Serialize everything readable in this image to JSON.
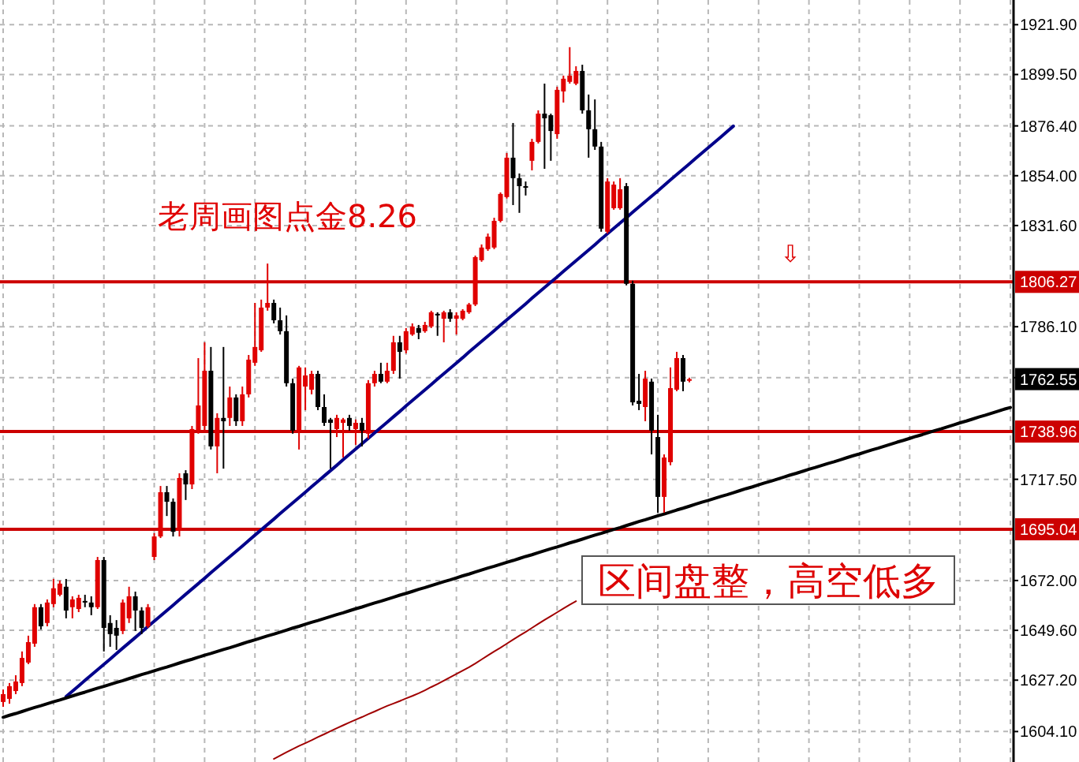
{
  "chart_data": {
    "type": "candlestick",
    "title": "老周画图点金8.26",
    "categories": [
      null,
      null,
      null,
      null,
      null,
      null,
      null,
      null,
      null,
      null,
      null,
      null,
      null,
      null,
      null,
      null,
      null,
      null,
      null,
      null,
      null,
      null,
      null,
      null,
      null,
      null,
      null,
      null,
      null,
      null,
      null,
      null,
      null,
      null,
      null,
      null,
      null,
      null,
      null,
      null,
      null,
      null,
      null,
      null,
      null,
      null,
      null,
      null,
      null,
      null,
      null,
      null,
      null,
      null,
      null,
      null,
      null,
      null,
      null,
      null,
      null,
      null,
      null,
      null,
      null,
      null,
      null,
      null,
      null,
      null,
      null,
      null,
      null,
      null,
      null,
      null,
      null,
      null,
      null,
      null,
      null,
      null,
      null,
      null,
      null,
      null,
      null,
      null,
      null,
      null,
      null,
      null,
      null,
      null,
      null,
      null,
      null,
      null,
      null,
      null,
      null,
      null,
      null,
      null,
      null,
      null,
      null,
      null,
      null,
      null,
      null,
      null,
      null,
      null,
      null,
      null,
      null,
      null,
      null,
      null,
      null,
      null,
      null,
      null,
      null,
      null,
      null,
      null,
      null,
      null,
      null,
      null,
      null,
      null,
      null,
      null,
      null,
      null,
      null,
      null,
      null,
      null,
      null,
      null,
      null,
      null,
      null,
      null,
      null,
      null,
      null,
      null,
      null,
      null,
      null,
      null,
      null,
      null,
      null,
      null,
      null
    ],
    "ohlc": [
      [
        1617.4,
        1623.0,
        1615.2,
        1620.9
      ],
      [
        1618.8,
        1625.9,
        1616.6,
        1624.5
      ],
      [
        1622.3,
        1629.4,
        1620.9,
        1626.6
      ],
      [
        1625.9,
        1640.1,
        1624.5,
        1637.2
      ],
      [
        1635.1,
        1647.2,
        1634.4,
        1644.3
      ],
      [
        1643.6,
        1661.4,
        1642.2,
        1660.0
      ],
      [
        1660.0,
        1661.4,
        1650.0,
        1651.4
      ],
      [
        1652.9,
        1663.5,
        1651.4,
        1662.1
      ],
      [
        1661.4,
        1672.7,
        1660.0,
        1668.5
      ],
      [
        1665.6,
        1672.0,
        1664.9,
        1670.6
      ],
      [
        1669.2,
        1672.7,
        1655.0,
        1658.5
      ],
      [
        1660.0,
        1664.9,
        1655.0,
        1663.5
      ],
      [
        1659.2,
        1665.6,
        1657.8,
        1664.2
      ],
      [
        1662.8,
        1665.6,
        1660.0,
        1662.1
      ],
      [
        1662.1,
        1664.9,
        1656.4,
        1660.0
      ],
      [
        1660.0,
        1682.6,
        1659.2,
        1681.2
      ],
      [
        1681.2,
        1682.6,
        1640.1,
        1650.7
      ],
      [
        1652.9,
        1656.4,
        1642.2,
        1647.9
      ],
      [
        1650.7,
        1654.2,
        1640.8,
        1647.2
      ],
      [
        1649.3,
        1663.5,
        1647.9,
        1662.1
      ],
      [
        1655.0,
        1669.2,
        1652.9,
        1664.9
      ],
      [
        1664.9,
        1667.0,
        1649.3,
        1658.5
      ],
      [
        1658.5,
        1660.0,
        1647.9,
        1650.7
      ],
      [
        1651.4,
        1661.4,
        1650.7,
        1660.0
      ],
      [
        1682.6,
        1693.3,
        1681.2,
        1691.8
      ],
      [
        1691.8,
        1714.5,
        1691.1,
        1711.7
      ],
      [
        1711.7,
        1714.5,
        1701.0,
        1707.4
      ],
      [
        1707.4,
        1708.9,
        1691.8,
        1693.9
      ],
      [
        1694.6,
        1720.2,
        1691.8,
        1718.1
      ],
      [
        1720.2,
        1721.6,
        1708.2,
        1715.2
      ],
      [
        1715.2,
        1741.5,
        1713.1,
        1740.1
      ],
      [
        1739.4,
        1772.0,
        1738.0,
        1750.7
      ],
      [
        1741.5,
        1779.1,
        1739.4,
        1766.3
      ],
      [
        1766.3,
        1777.0,
        1730.9,
        1732.3
      ],
      [
        1732.3,
        1747.2,
        1720.2,
        1745.1
      ],
      [
        1745.1,
        1777.0,
        1722.3,
        1743.6
      ],
      [
        1745.1,
        1759.2,
        1741.5,
        1754.3
      ],
      [
        1754.3,
        1755.7,
        1741.5,
        1743.6
      ],
      [
        1743.6,
        1759.2,
        1741.5,
        1755.7
      ],
      [
        1755.7,
        1773.4,
        1754.3,
        1771.3
      ],
      [
        1769.9,
        1796.8,
        1768.5,
        1777.0
      ],
      [
        1775.5,
        1798.3,
        1774.8,
        1794.7
      ],
      [
        1794.7,
        1814.5,
        1793.3,
        1796.8
      ],
      [
        1796.8,
        1798.3,
        1787.6,
        1789.0
      ],
      [
        1789.0,
        1794.7,
        1782.6,
        1784.1
      ],
      [
        1784.1,
        1791.2,
        1759.2,
        1760.7
      ],
      [
        1760.7,
        1762.8,
        1738.0,
        1739.4
      ],
      [
        1739.4,
        1768.5,
        1730.9,
        1767.8
      ],
      [
        1759.2,
        1767.8,
        1748.6,
        1764.2
      ],
      [
        1757.8,
        1766.3,
        1755.7,
        1764.9
      ],
      [
        1764.9,
        1766.3,
        1748.6,
        1750.0
      ],
      [
        1750.0,
        1755.7,
        1741.5,
        1742.9
      ],
      [
        1744.4,
        1745.1,
        1722.3,
        1742.9
      ],
      [
        1740.1,
        1746.5,
        1736.5,
        1745.1
      ],
      [
        1742.9,
        1745.1,
        1727.3,
        1744.4
      ],
      [
        1745.1,
        1746.5,
        1739.4,
        1741.5
      ],
      [
        1740.1,
        1744.4,
        1733.0,
        1742.9
      ],
      [
        1742.9,
        1745.1,
        1732.3,
        1739.4
      ],
      [
        1738.0,
        1762.1,
        1735.8,
        1760.7
      ],
      [
        1760.7,
        1766.3,
        1759.2,
        1764.9
      ],
      [
        1764.9,
        1769.9,
        1760.7,
        1761.4
      ],
      [
        1761.4,
        1769.9,
        1760.7,
        1766.3
      ],
      [
        1766.3,
        1782.0,
        1764.9,
        1779.1
      ],
      [
        1779.1,
        1782.0,
        1762.8,
        1774.8
      ],
      [
        1775.5,
        1785.5,
        1774.1,
        1784.1
      ],
      [
        1782.6,
        1787.6,
        1782.0,
        1786.2
      ],
      [
        1785.5,
        1786.9,
        1780.5,
        1783.4
      ],
      [
        1784.1,
        1788.3,
        1783.4,
        1786.9
      ],
      [
        1786.2,
        1793.3,
        1785.5,
        1792.6
      ],
      [
        1791.9,
        1792.6,
        1782.0,
        1791.2
      ],
      [
        1789.7,
        1793.3,
        1779.1,
        1792.6
      ],
      [
        1792.6,
        1794.0,
        1788.3,
        1789.7
      ],
      [
        1789.7,
        1792.6,
        1782.6,
        1791.2
      ],
      [
        1789.7,
        1794.0,
        1789.0,
        1793.3
      ],
      [
        1792.6,
        1796.8,
        1791.9,
        1796.1
      ],
      [
        1796.1,
        1818.1,
        1795.4,
        1817.4
      ],
      [
        1816.0,
        1823.1,
        1815.3,
        1821.7
      ],
      [
        1821.0,
        1828.0,
        1820.2,
        1826.6
      ],
      [
        1821.7,
        1835.1,
        1821.0,
        1833.7
      ],
      [
        1833.7,
        1846.5,
        1833.0,
        1845.8
      ],
      [
        1844.4,
        1864.2,
        1843.7,
        1862.1
      ],
      [
        1862.1,
        1877.7,
        1840.8,
        1852.9
      ],
      [
        1852.9,
        1855.0,
        1837.3,
        1849.3
      ],
      [
        1849.3,
        1851.4,
        1845.1,
        1848.6
      ],
      [
        1860.7,
        1870.6,
        1856.4,
        1869.2
      ],
      [
        1869.2,
        1883.4,
        1868.5,
        1881.9
      ],
      [
        1881.9,
        1895.4,
        1857.1,
        1879.8
      ],
      [
        1881.2,
        1881.9,
        1860.7,
        1874.1
      ],
      [
        1872.7,
        1894.0,
        1870.6,
        1892.6
      ],
      [
        1891.9,
        1899.0,
        1886.9,
        1897.6
      ],
      [
        1896.2,
        1911.8,
        1895.4,
        1899.0
      ],
      [
        1895.4,
        1903.2,
        1894.7,
        1901.1
      ],
      [
        1901.1,
        1903.9,
        1881.9,
        1883.4
      ],
      [
        1883.4,
        1890.5,
        1862.1,
        1874.9
      ],
      [
        1874.9,
        1888.3,
        1865.6,
        1867.1
      ],
      [
        1867.1,
        1869.2,
        1828.8,
        1830.2
      ],
      [
        1828.8,
        1852.9,
        1828.0,
        1851.4
      ],
      [
        1839.4,
        1851.4,
        1838.7,
        1850.0
      ],
      [
        1839.4,
        1852.9,
        1838.7,
        1847.9
      ],
      [
        1849.3,
        1850.7,
        1804.7,
        1805.4
      ],
      [
        1805.4,
        1806.8,
        1750.7,
        1752.1
      ],
      [
        1752.8,
        1764.9,
        1748.6,
        1751.4
      ],
      [
        1750.0,
        1766.3,
        1743.6,
        1762.8
      ],
      [
        1761.4,
        1762.8,
        1728.7,
        1739.4
      ],
      [
        1736.5,
        1746.5,
        1702.5,
        1709.6
      ],
      [
        1709.6,
        1728.7,
        1702.5,
        1727.3
      ],
      [
        1725.2,
        1767.8,
        1723.8,
        1758.5
      ],
      [
        1757.8,
        1774.8,
        1757.1,
        1772.0
      ],
      [
        1772.0,
        1773.4,
        1757.1,
        1761.4
      ],
      [
        1761.8,
        1763.2,
        1761.1,
        1762.55
      ],
      null,
      null,
      null,
      null,
      null,
      null,
      null,
      null,
      null,
      null,
      null,
      null,
      null,
      null,
      null,
      null,
      null,
      null,
      null,
      null,
      null,
      null,
      null,
      null,
      null,
      null,
      null,
      null,
      null,
      null,
      null,
      null,
      null,
      null,
      null,
      null,
      null,
      null,
      null,
      null,
      null,
      null,
      null,
      null,
      null,
      null,
      null,
      null,
      null,
      null,
      null
    ],
    "colors": [
      "#e00000",
      "#e00000",
      "#e00000",
      "#e00000",
      "#e00000",
      "#e00000",
      "#000000",
      "#e00000",
      "#e00000",
      "#e00000",
      "#000000",
      "#e00000",
      "#e00000",
      "#000000",
      "#000000",
      "#e00000",
      "#000000",
      "#000000",
      "#000000",
      "#e00000",
      "#e00000",
      "#000000",
      "#000000",
      "#e00000",
      "#e00000",
      "#e00000",
      "#000000",
      "#000000",
      "#e00000",
      "#000000",
      "#e00000",
      "#e00000",
      "#e00000",
      "#000000",
      "#e00000",
      "#000000",
      "#e00000",
      "#000000",
      "#e00000",
      "#e00000",
      "#e00000",
      "#e00000",
      "#e00000",
      "#000000",
      "#000000",
      "#000000",
      "#000000",
      "#e00000",
      "#e00000",
      "#e00000",
      "#000000",
      "#000000",
      "#000000",
      "#e00000",
      "#e00000",
      "#000000",
      "#e00000",
      "#000000",
      "#e00000",
      "#e00000",
      "#000000",
      "#e00000",
      "#e00000",
      "#000000",
      "#e00000",
      "#e00000",
      "#000000",
      "#e00000",
      "#e00000",
      "#000000",
      "#e00000",
      "#000000",
      "#e00000",
      "#e00000",
      "#e00000",
      "#e00000",
      "#e00000",
      "#e00000",
      "#e00000",
      "#e00000",
      "#e00000",
      "#000000",
      "#000000",
      "#000000",
      "#e00000",
      "#e00000",
      "#000000",
      "#000000",
      "#e00000",
      "#e00000",
      "#e00000",
      "#e00000",
      "#000000",
      "#000000",
      "#000000",
      "#000000",
      "#e00000",
      "#e00000",
      "#e00000",
      "#000000",
      "#000000",
      "#000000",
      "#e00000",
      "#000000",
      "#000000",
      "#e00000",
      "#e00000",
      "#e00000",
      "#000000",
      "#e00000",
      null,
      null,
      null,
      null,
      null,
      null,
      null,
      null,
      null,
      null,
      null,
      null,
      null,
      null,
      null,
      null,
      null,
      null,
      null,
      null,
      null,
      null,
      null,
      null,
      null,
      null,
      null,
      null,
      null,
      null,
      null,
      null,
      null,
      null,
      null,
      null,
      null,
      null,
      null,
      null,
      null,
      null,
      null,
      null,
      null,
      null,
      null,
      null,
      null,
      null,
      null
    ],
    "series": [
      {
        "type": "line",
        "color": "#00008b",
        "values": [
          null,
          null,
          null,
          null,
          null,
          null,
          null,
          null,
          null,
          null,
          1619.8,
          1622.2,
          1624.6,
          1627.1,
          1629.5,
          1631.9,
          1634.3,
          1636.7,
          1639.2,
          1641.6,
          1644.0,
          1646.4,
          1648.8,
          1651.3,
          1653.7,
          1656.1,
          1658.5,
          1660.9,
          1663.4,
          1665.8,
          1668.2,
          1670.6,
          1673.0,
          1675.5,
          1677.9,
          1680.3,
          1682.7,
          1685.1,
          1687.5,
          1690.0,
          1692.4,
          1694.8,
          1697.2,
          1699.6,
          1702.1,
          1704.5,
          1706.9,
          1709.3,
          1711.7,
          1714.2,
          1716.6,
          1719.0,
          1721.4,
          1723.8,
          1726.3,
          1728.7,
          1731.1,
          1733.5,
          1735.9,
          1738.4,
          1740.8,
          1743.2,
          1745.6,
          1748.0,
          1750.5,
          1752.9,
          1755.3,
          1757.7,
          1760.1,
          1762.6,
          1765.0,
          1767.4,
          1769.8,
          1772.2,
          1774.7,
          1777.1,
          1779.5,
          1781.9,
          1784.3,
          1786.8,
          1789.2,
          1791.6,
          1794.0,
          1796.4,
          1798.9,
          1801.3,
          1803.7,
          1806.1,
          1808.5,
          1811.0,
          1813.4,
          1815.8,
          1818.2,
          1820.6,
          1823.0,
          1825.5,
          1827.9,
          1830.3,
          1832.7,
          1835.1,
          1837.6,
          1840.0,
          1842.4,
          1844.8,
          1847.2,
          1849.7,
          1852.1,
          1854.5,
          1856.9,
          1859.3,
          1861.8,
          1864.2,
          1866.6,
          1869.0,
          1871.4,
          1873.9,
          1876.3,
          null,
          null,
          null,
          null,
          null,
          null,
          null,
          null,
          null,
          null,
          null,
          null,
          null,
          null,
          null,
          null,
          null,
          null,
          null,
          null,
          null,
          null,
          null,
          null,
          null,
          null,
          null,
          null,
          null,
          null,
          null,
          null,
          null,
          null,
          null,
          null,
          null,
          null,
          null,
          null,
          null,
          null,
          null,
          null
        ]
      },
      {
        "type": "line",
        "color": "#000000",
        "values": [
          1610.5,
          1611.4,
          1612.2,
          1613.1,
          1614.0,
          1614.9,
          1615.7,
          1616.6,
          1617.5,
          1618.3,
          1619.2,
          1620.1,
          1621.0,
          1621.8,
          1622.7,
          1623.6,
          1624.4,
          1625.3,
          1626.2,
          1627.0,
          1627.9,
          1628.8,
          1629.7,
          1630.5,
          1631.4,
          1632.3,
          1633.1,
          1634.0,
          1634.9,
          1635.8,
          1636.6,
          1637.5,
          1638.4,
          1639.2,
          1640.1,
          1641.0,
          1641.8,
          1642.7,
          1643.6,
          1644.5,
          1645.3,
          1646.2,
          1647.1,
          1647.9,
          1648.8,
          1649.7,
          1650.6,
          1651.4,
          1652.3,
          1653.2,
          1654.0,
          1654.9,
          1655.8,
          1656.7,
          1657.5,
          1658.4,
          1659.3,
          1660.1,
          1661.0,
          1661.9,
          1662.7,
          1663.6,
          1664.5,
          1665.4,
          1666.2,
          1667.1,
          1668.0,
          1668.8,
          1669.7,
          1670.6,
          1671.5,
          1672.3,
          1673.2,
          1674.1,
          1674.9,
          1675.8,
          1676.7,
          1677.6,
          1678.4,
          1679.3,
          1680.2,
          1681.0,
          1681.9,
          1682.8,
          1683.6,
          1684.5,
          1685.4,
          1686.3,
          1687.1,
          1688.0,
          1688.9,
          1689.7,
          1690.6,
          1691.5,
          1692.4,
          1693.2,
          1694.1,
          1695.0,
          1695.8,
          1696.7,
          1697.6,
          1698.5,
          1699.3,
          1700.2,
          1701.1,
          1701.9,
          1702.8,
          1703.7,
          1704.5,
          1705.4,
          1706.3,
          1707.2,
          1708.0,
          1708.9,
          1709.8,
          1710.6,
          1711.5,
          1712.4,
          1713.3,
          1714.1,
          1715.0,
          1715.9,
          1716.7,
          1717.6,
          1718.5,
          1719.4,
          1720.2,
          1721.1,
          1722.0,
          1722.8,
          1723.7,
          1724.6,
          1725.4,
          1726.3,
          1727.2,
          1728.1,
          1728.9,
          1729.8,
          1730.7,
          1731.5,
          1732.4,
          1733.3,
          1734.2,
          1735.0,
          1735.9,
          1736.8,
          1737.6,
          1738.5,
          1739.4,
          1740.2,
          1741.1,
          1742.0,
          1742.9,
          1743.7,
          1744.6,
          1745.5,
          1746.3,
          1747.2,
          1748.1,
          1749.0,
          1749.8
        ]
      },
      {
        "type": "line",
        "color": "#a00000",
        "values": [
          null,
          null,
          null,
          null,
          null,
          null,
          null,
          null,
          null,
          null,
          null,
          null,
          null,
          null,
          null,
          null,
          null,
          null,
          null,
          null,
          null,
          null,
          null,
          null,
          null,
          null,
          null,
          null,
          null,
          null,
          null,
          null,
          null,
          null,
          null,
          null,
          null,
          null,
          null,
          null,
          null,
          null,
          null,
          1591.8,
          1593.3,
          1594.8,
          1596.2,
          1597.6,
          1598.9,
          1600.2,
          1601.6,
          1602.9,
          1604.3,
          1605.6,
          1606.9,
          1608.2,
          1609.4,
          1610.6,
          1611.9,
          1613.1,
          1614.4,
          1615.6,
          1616.7,
          1617.8,
          1619.0,
          1620.1,
          1621.3,
          1622.6,
          1624.1,
          1625.5,
          1627.0,
          1628.5,
          1630.0,
          1631.5,
          1633.0,
          1634.7,
          1636.5,
          1638.3,
          1640.1,
          1641.8,
          1643.6,
          1645.4,
          1647.2,
          1648.9,
          1650.7,
          1652.5,
          1654.3,
          1656.0,
          1657.7,
          1659.4,
          1661.1,
          1662.7,
          null,
          null,
          null,
          null,
          null,
          null,
          null,
          null,
          null,
          null,
          null,
          null,
          null,
          null,
          null,
          null,
          null,
          null,
          null,
          null,
          null,
          null,
          null,
          null,
          null,
          null,
          null,
          null,
          null,
          null,
          null,
          null,
          null,
          null,
          null,
          null,
          null,
          null,
          null,
          null,
          null,
          null,
          null,
          null,
          null,
          null,
          null,
          null,
          null,
          null,
          null,
          null,
          null,
          null,
          null,
          null,
          null,
          null,
          null,
          null,
          null,
          null,
          null,
          null,
          null,
          null,
          null,
          null,
          null
        ]
      }
    ],
    "ylim": [
      1590.4,
      1933.0
    ],
    "yticks": [
      {
        "value": 1921.9,
        "label": "1921.90"
      },
      {
        "value": 1899.5,
        "label": "1899.50"
      },
      {
        "value": 1876.4,
        "label": "1876.40"
      },
      {
        "value": 1854,
        "label": "1854.00"
      },
      {
        "value": 1831.6,
        "label": "1831.60"
      },
      {
        "value": 1786.1,
        "label": "1786.10"
      },
      {
        "value": 1763.2,
        "label": null
      },
      {
        "value": 1717.5,
        "label": "1717.50"
      },
      {
        "value": 1672,
        "label": "1672.00"
      },
      {
        "value": 1649.6,
        "label": "1649.60"
      },
      {
        "value": 1627.2,
        "label": "1627.20"
      },
      {
        "value": 1604.1,
        "label": "1604.10"
      }
    ],
    "tick_labels": "y",
    "grid": true,
    "ref_lines": [
      {
        "axis": "y",
        "value": 1806.27,
        "label": "1806.27",
        "color": "#cc0000"
      },
      {
        "axis": "y",
        "value": 1738.96,
        "label": "1738.96",
        "color": "#cc0000"
      },
      {
        "axis": "y",
        "value": 1695.04,
        "label": "1695.04",
        "color": "#cc0000"
      }
    ],
    "annotations": [
      "区间盘整，高空低多",
      "⇩",
      "1762.55"
    ]
  }
}
